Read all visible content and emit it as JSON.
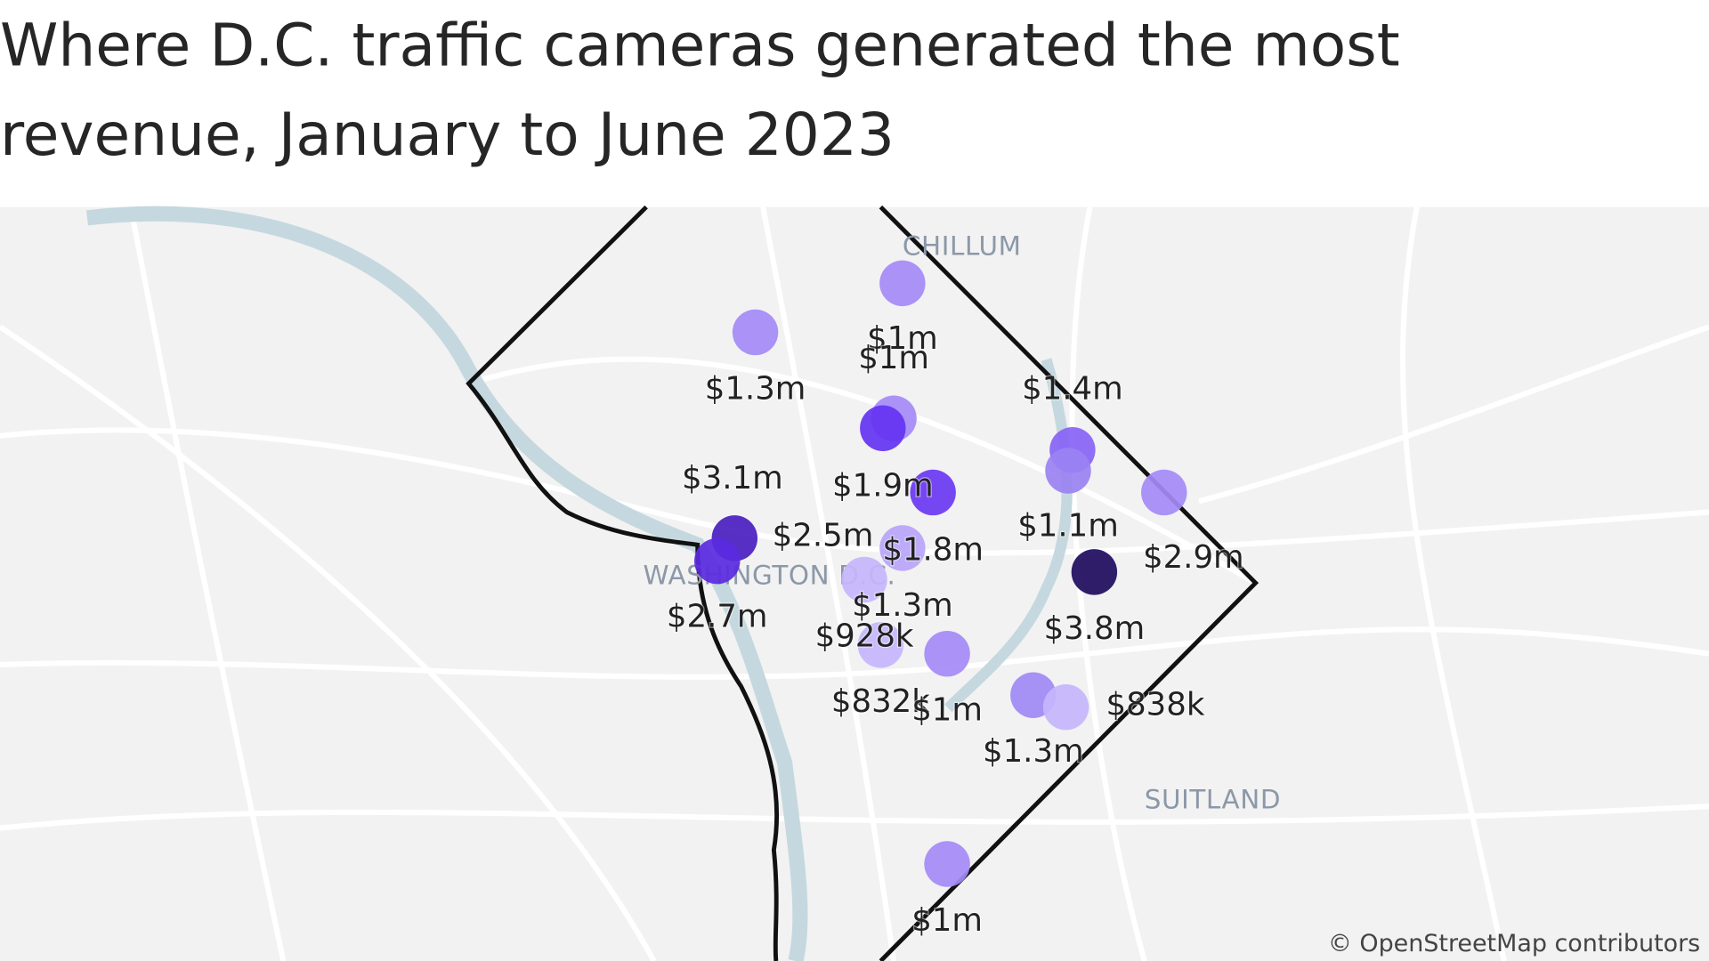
{
  "header": {
    "title_lines": [
      "Where D.C. traffic cameras generated the most",
      "revenue, January to June 2023"
    ]
  },
  "map": {
    "places": [
      "CHILLUM",
      "WASHINGTON D.C.",
      "SUITLAND"
    ],
    "attribution": "© OpenStreetMap contributors",
    "markers": [
      {
        "label": "$1m",
        "color": "#a58af7"
      },
      {
        "label": "$1.3m",
        "color": "#a58af7"
      },
      {
        "label": "$1m",
        "color": "#a58af7"
      },
      {
        "label": "$1.9m",
        "color": "#6433f2"
      },
      {
        "label": "$1.8m",
        "color": "#6a38f2"
      },
      {
        "label": "$1.3m",
        "color": "#b9a4fa"
      },
      {
        "label": "$3.1m",
        "color": "#4a1ec0"
      },
      {
        "label": "$2.7m",
        "color": "#5a2ae0"
      },
      {
        "label": "$2.5m",
        "color": "#5025cc"
      },
      {
        "label": "$928k",
        "color": "#c6b6fc"
      },
      {
        "label": "$832k",
        "color": "#c6b6fc"
      },
      {
        "label": "$1m",
        "color": "#a58af7"
      },
      {
        "label": "$1.3m",
        "color": "#a08af5"
      },
      {
        "label": "$838k",
        "color": "#c6b6fc"
      },
      {
        "label": "$1.4m",
        "color": "#8863f6"
      },
      {
        "label": "$1.1m",
        "color": "#9a82f2"
      },
      {
        "label": "$3.8m",
        "color": "#1f0b5e"
      },
      {
        "label": "$2.9m",
        "color": "#a58af7"
      },
      {
        "label": "$1m",
        "color": "#a58af7"
      }
    ]
  }
}
